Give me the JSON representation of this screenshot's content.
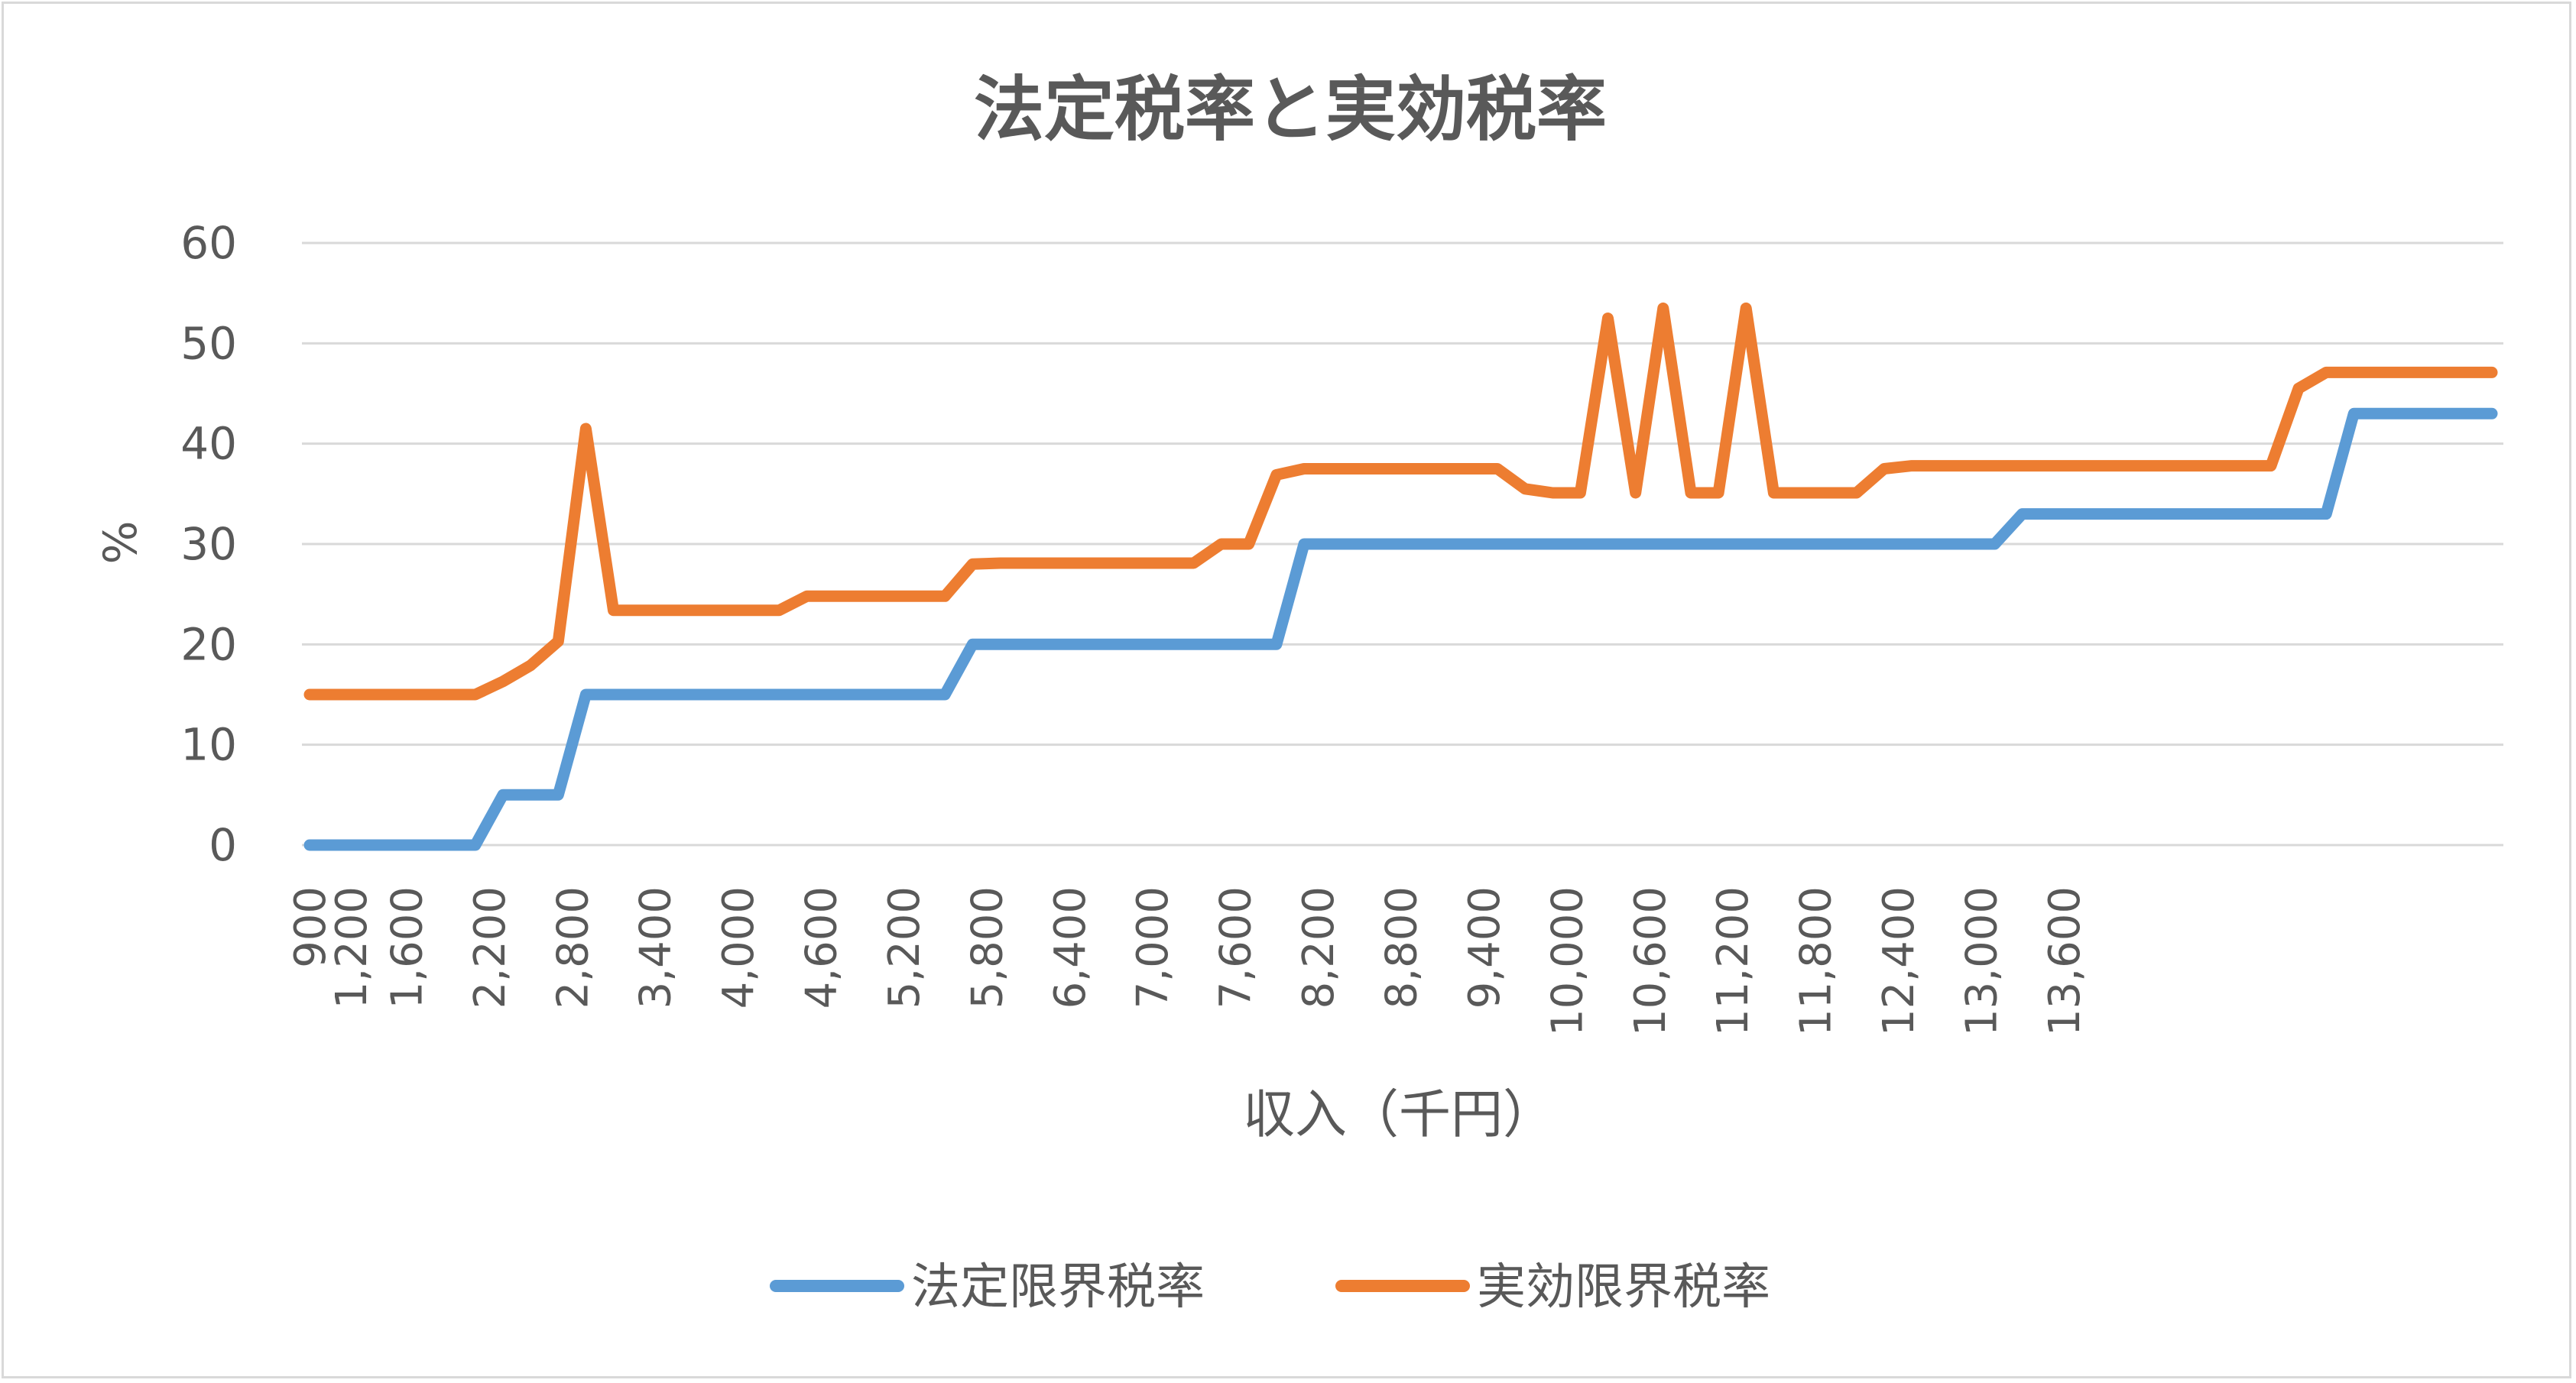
{
  "chart_data": {
    "type": "line",
    "title": "法定税率と実効税率",
    "xlabel": "収入（千円）",
    "ylabel": "%",
    "ylim": [
      0,
      60
    ],
    "yticks": [
      "0",
      "10",
      "20",
      "30",
      "40",
      "50",
      "60"
    ],
    "x_start": 900,
    "x_step": 200,
    "x_tick_labels": [
      "900",
      "1,200",
      "1,600",
      "2,200",
      "2,800",
      "3,400",
      "4,000",
      "4,600",
      "5,200",
      "5,800",
      "6,400",
      "7,000",
      "7,600",
      "8,200",
      "8,800",
      "9,400",
      "10,000",
      "10,600",
      "11,200",
      "11,800",
      "12,400",
      "13,000",
      "13,600"
    ],
    "x_tick_values": [
      900,
      1200,
      1600,
      2200,
      2800,
      3400,
      4000,
      4600,
      5200,
      5800,
      6400,
      7000,
      7600,
      8200,
      8800,
      9400,
      10000,
      10600,
      11200,
      11800,
      12400,
      13000,
      13600
    ],
    "grid": true,
    "legend_position": "bottom",
    "series": [
      {
        "name": "法定限界税率",
        "color": "#5b9bd5",
        "values": [
          0,
          0,
          0,
          0,
          0,
          0,
          0,
          5,
          5,
          5,
          15,
          15,
          15,
          15,
          15,
          15,
          15,
          15,
          15,
          15,
          15,
          15,
          15,
          15,
          20,
          20,
          20,
          20,
          20,
          20,
          20,
          20,
          20,
          20,
          20,
          20,
          30,
          30,
          30,
          30,
          30,
          30,
          30,
          30,
          30,
          30,
          30,
          30,
          30,
          30,
          30,
          30,
          30,
          30,
          30,
          30,
          30,
          30,
          30,
          30,
          30,
          30,
          33,
          33,
          33,
          33,
          33,
          33,
          33,
          33,
          33,
          33,
          33,
          33,
          43,
          43,
          43,
          43,
          43,
          43
        ]
      },
      {
        "name": "実効限界税率",
        "color": "#ed7d31",
        "values": [
          15,
          15,
          15,
          15,
          15,
          15,
          15,
          16.3,
          17.9,
          20.3,
          41.5,
          23.4,
          23.4,
          23.4,
          23.4,
          23.4,
          23.4,
          23.4,
          24.8,
          24.8,
          24.8,
          24.8,
          24.8,
          24.8,
          28,
          28.1,
          28.1,
          28.1,
          28.1,
          28.1,
          28.1,
          28.1,
          28.1,
          30,
          30,
          36.9,
          37.5,
          37.5,
          37.5,
          37.5,
          37.5,
          37.5,
          37.5,
          37.5,
          35.5,
          35.1,
          35.1,
          52.5,
          35.1,
          53.5,
          35.1,
          35.1,
          53.5,
          35.1,
          35.1,
          35.1,
          35.1,
          37.5,
          37.8,
          37.8,
          37.8,
          37.8,
          37.8,
          37.8,
          37.8,
          37.8,
          37.8,
          37.8,
          37.8,
          37.8,
          37.8,
          37.8,
          45.5,
          47.1,
          47.1,
          47.1,
          47.1,
          47.1,
          47.1,
          47.1
        ]
      }
    ]
  }
}
